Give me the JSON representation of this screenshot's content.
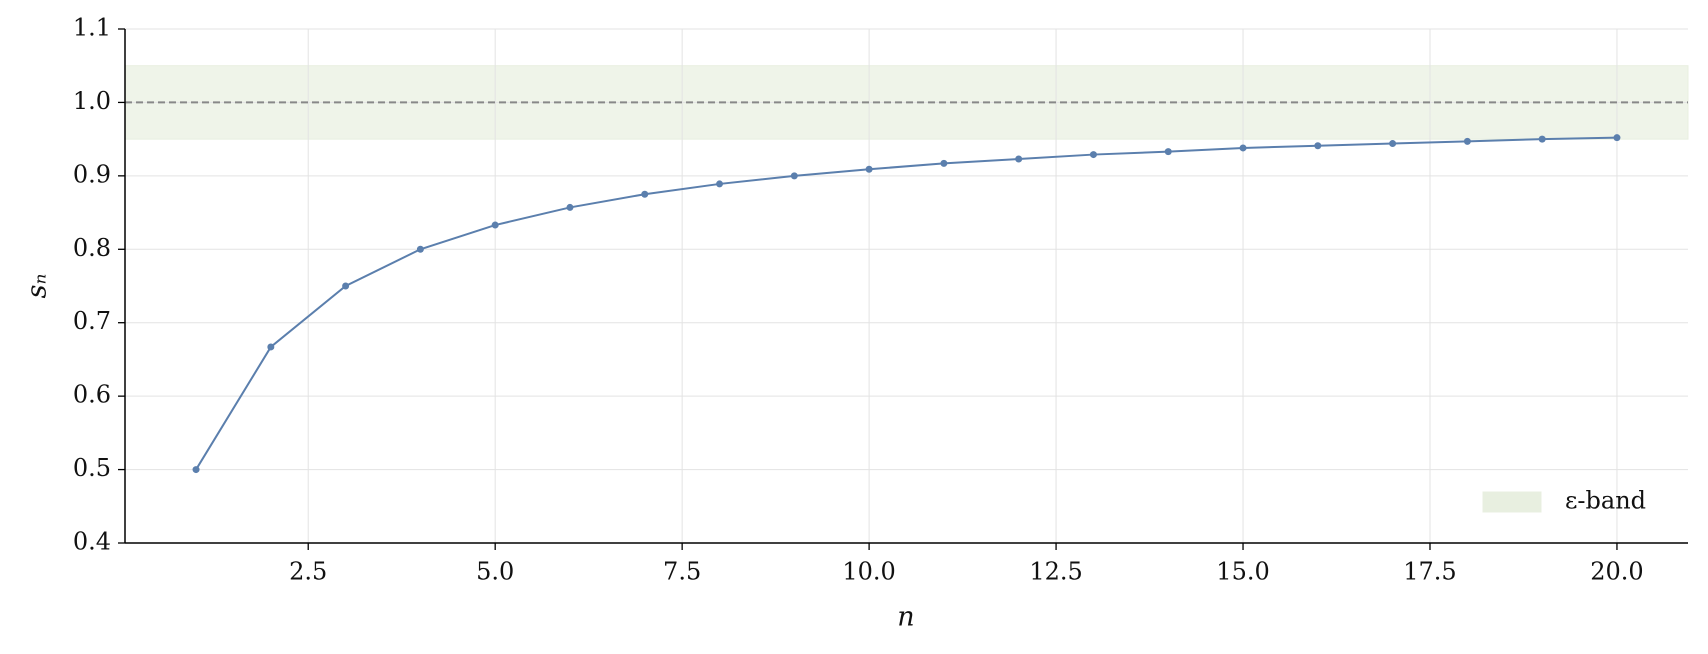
{
  "chart_data": {
    "type": "line",
    "xlabel": "n",
    "ylabel": "sₙ",
    "x": [
      1,
      2,
      3,
      4,
      5,
      6,
      7,
      8,
      9,
      10,
      11,
      12,
      13,
      14,
      15,
      16,
      17,
      18,
      19,
      20
    ],
    "series": [
      {
        "name": "sₙ",
        "color": "#5b7fad",
        "values": [
          0.5,
          0.667,
          0.75,
          0.8,
          0.833,
          0.857,
          0.875,
          0.889,
          0.9,
          0.909,
          0.917,
          0.923,
          0.929,
          0.933,
          0.938,
          0.941,
          0.944,
          0.947,
          0.95,
          0.952
        ]
      }
    ],
    "band": {
      "name": "ε-band",
      "range": [
        0.95,
        1.05
      ],
      "color": "#e8efe0"
    },
    "hline": {
      "value": 1.0,
      "color": "#888888"
    },
    "xlim": [
      0.05,
      20.95
    ],
    "ylim": [
      0.4,
      1.1
    ],
    "xticks": [
      2.5,
      {
        "value": 5,
        "label": "5.0"
      },
      7.5,
      {
        "value": 10,
        "label": "10.0"
      },
      12.5,
      {
        "value": 15,
        "label": "15.0"
      },
      17.5,
      {
        "value": 20,
        "label": "20.0"
      }
    ],
    "yticks": [
      0.4,
      0.5,
      0.6,
      0.7,
      0.8,
      0.9,
      {
        "value": 1,
        "label": "1.0"
      },
      1.1
    ],
    "grid": true,
    "legend": "lower right"
  }
}
